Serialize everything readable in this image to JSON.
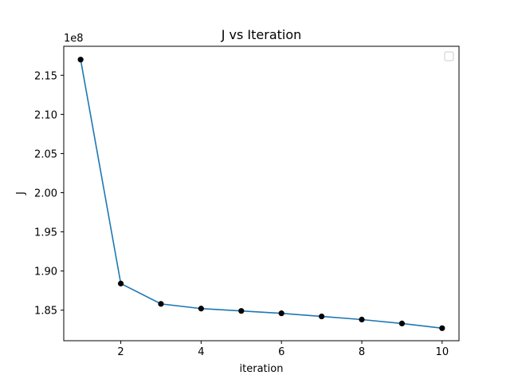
{
  "chart_data": {
    "type": "line",
    "title": "J vs Iteration",
    "xlabel": "iteration",
    "ylabel": "J",
    "y_offset_label": "1e8",
    "xlim": [
      0.58,
      10.42
    ],
    "ylim": [
      1.811,
      2.187
    ],
    "xticks": [
      2,
      4,
      6,
      8,
      10
    ],
    "xtick_labels": [
      "2",
      "4",
      "6",
      "8",
      "10"
    ],
    "yticks": [
      1.85,
      1.9,
      1.95,
      2.0,
      2.05,
      2.1,
      2.15
    ],
    "ytick_labels": [
      "1.85",
      "1.90",
      "1.95",
      "2.00",
      "2.05",
      "2.10",
      "2.15"
    ],
    "grid": false,
    "legend": {
      "placement": "top-right",
      "entries": []
    },
    "series": [
      {
        "x": [
          1,
          2,
          3,
          4,
          5,
          6,
          7,
          8,
          9,
          10
        ],
        "y": [
          2.17,
          1.884,
          1.858,
          1.852,
          1.849,
          1.846,
          1.842,
          1.838,
          1.833,
          1.827
        ],
        "color": "#1f77b4",
        "marker_color": "#000000"
      }
    ]
  }
}
